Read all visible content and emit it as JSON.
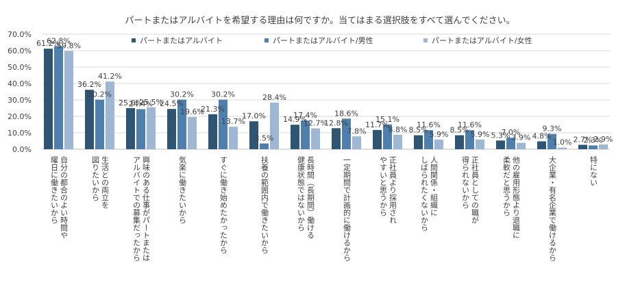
{
  "chart_data": {
    "type": "bar",
    "title": "パートまたはアルバイトを希望する理由は何ですか。当てはまる選択肢をすべて選んでください。",
    "xlabel": "",
    "ylabel": "",
    "ylim": [
      0,
      70
    ],
    "yticks": [
      "0.0%",
      "10.0%",
      "20.0%",
      "30.0%",
      "40.0%",
      "50.0%",
      "60.0%",
      "70.0%"
    ],
    "grid": true,
    "legend_position": "top-right",
    "categories": [
      [
        "曜日に働きたいから",
        "自分の都合のよい時間や"
      ],
      [
        "図りたいから",
        "生活との両立を"
      ],
      [
        "アルバイトでの募集だったから",
        "興味のある仕事がパートまたは"
      ],
      [
        "気楽に働きたいから"
      ],
      [
        "すぐに働き始めたかったから"
      ],
      [
        "扶養の範囲内で働きたいから"
      ],
      [
        "健康状態ではないから",
        "長時間（長期間）働ける"
      ],
      [
        "一定期間で計画的に働けるから"
      ],
      [
        "やすいと思うから",
        "正社員より採用され"
      ],
      [
        "しばられたくないから",
        "人間関係・組織に"
      ],
      [
        "得られないから",
        "正社員としての職が"
      ],
      [
        "柔軟だと思うから",
        "他の雇用形態より退職に"
      ],
      [
        "大企業・有名企業で働けるから"
      ],
      [
        "特にない"
      ]
    ],
    "series": [
      {
        "name": "パートまたはアルバイト",
        "color": "#2f5573",
        "values": [
          61.2,
          36.2,
          25.0,
          24.5,
          21.3,
          17.0,
          14.9,
          12.8,
          11.7,
          8.5,
          8.5,
          5.3,
          4.8,
          2.7
        ],
        "labels": [
          "61.2%",
          "36.2%",
          "25.0%",
          "24.5%",
          "21.3%",
          "17.0%",
          "14.9%",
          "12.8%",
          "11.7%",
          "8.5%",
          "8.5%",
          "5.3%",
          "4.8%",
          "2.7%"
        ]
      },
      {
        "name": "パートまたはアルバイト/男性",
        "color": "#4f7fac",
        "values": [
          62.8,
          30.2,
          24.4,
          30.2,
          30.2,
          3.5,
          17.4,
          18.6,
          15.1,
          11.6,
          11.6,
          7.0,
          9.3,
          2.3
        ],
        "labels": [
          "62.8%",
          "30.2%",
          "24.4%",
          "30.2%",
          "30.2%",
          "3.5%",
          "17.4%",
          "18.6%",
          "15.1%",
          "11.6%",
          "11.6%",
          "7.0%",
          "9.3%",
          "2.3%"
        ]
      },
      {
        "name": "パートまたはアルバイト/女性",
        "color": "#9eb7d2",
        "values": [
          59.8,
          41.2,
          25.5,
          19.6,
          13.7,
          28.4,
          12.7,
          7.8,
          8.8,
          5.9,
          5.9,
          3.9,
          1.0,
          2.9
        ],
        "labels": [
          "59.8%",
          "41.2%",
          "25.5%",
          "19.6%",
          "13.7%",
          "28.4%",
          "12.7%",
          "7.8%",
          "8.8%",
          "5.9%",
          "5.9%",
          "3.9%",
          "1.0%",
          "2.9%"
        ]
      }
    ]
  }
}
